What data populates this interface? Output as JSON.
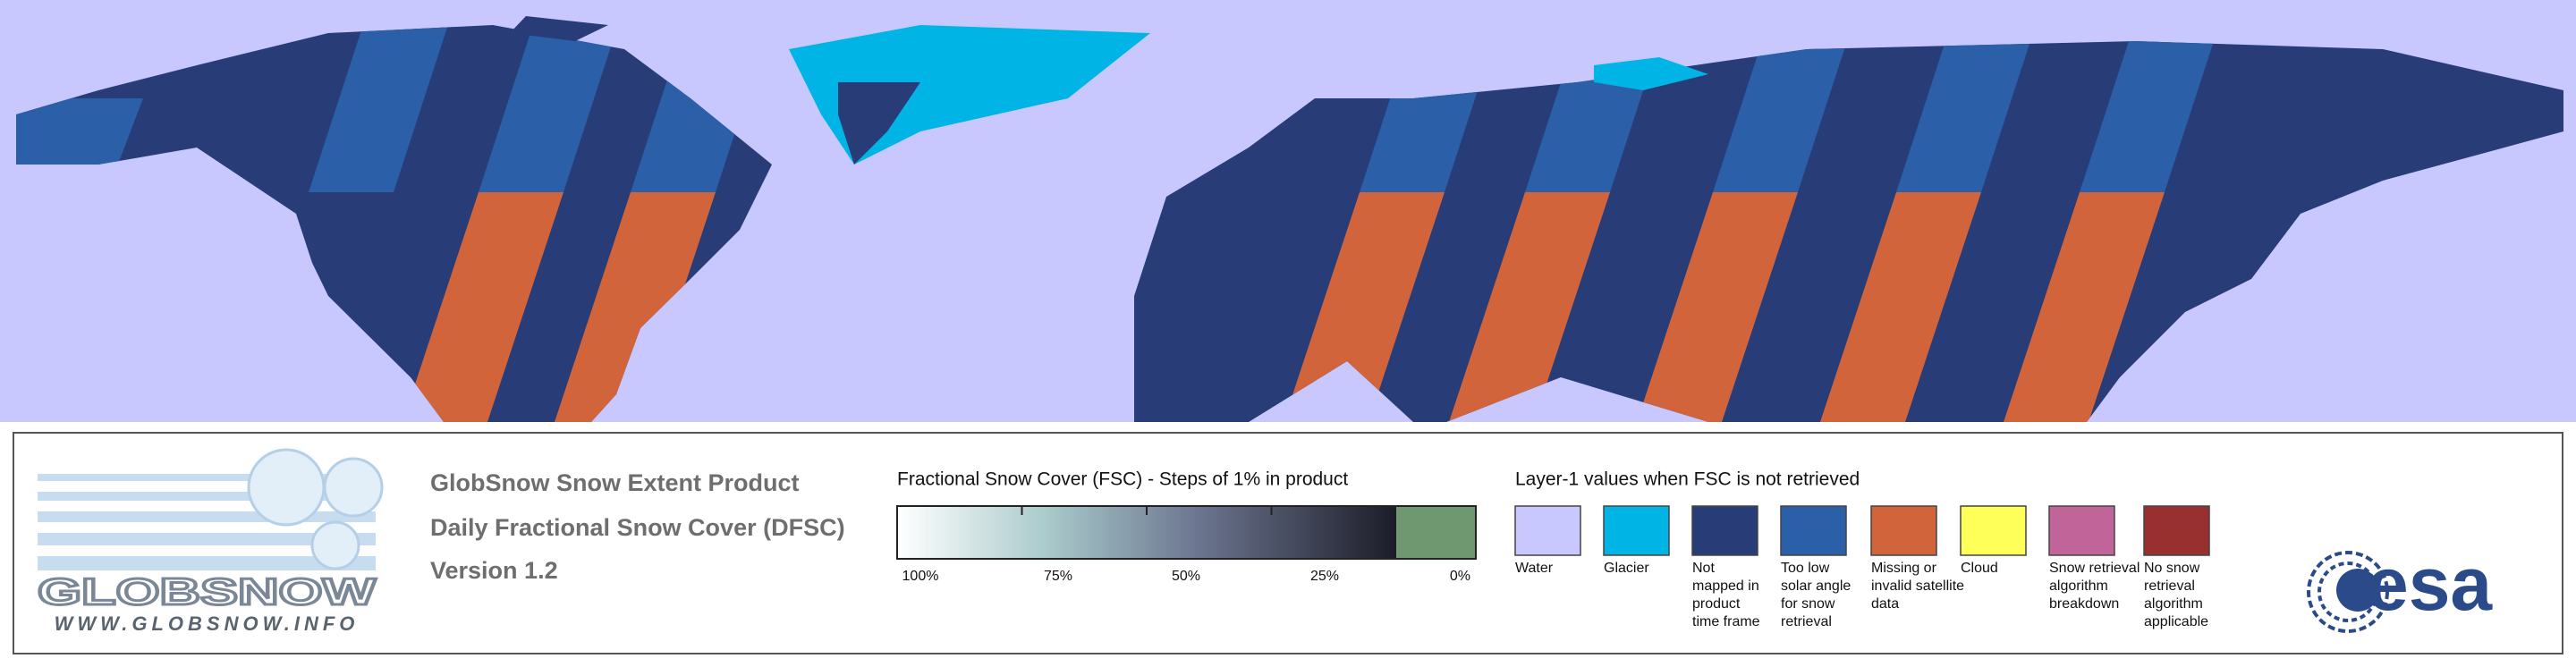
{
  "logo": {
    "name": "GLOBSNOW",
    "url": "WWW.GLOBSNOW.INFO"
  },
  "product": {
    "title": "GlobSnow Snow Extent Product",
    "subtitle": "Daily Fractional Snow Cover (DFSC)",
    "version": "Version 1.2"
  },
  "fsc_scale": {
    "title": "Fractional Snow Cover (FSC) - Steps of 1% in product",
    "labels": [
      "100%",
      "75%",
      "50%",
      "25%",
      "0%"
    ]
  },
  "layer1": {
    "title": "Layer-1 values when FSC is not retrieved",
    "items": [
      {
        "color": "#c8c8ff",
        "lines": [
          "Water"
        ]
      },
      {
        "color": "#00b4e6",
        "lines": [
          "Glacier"
        ]
      },
      {
        "color": "#283c78",
        "lines": [
          "Not",
          "mapped in",
          "product",
          "time frame"
        ]
      },
      {
        "color": "#2b5fa8",
        "lines": [
          "Too low",
          "solar angle",
          "for snow",
          "retrieval"
        ]
      },
      {
        "color": "#d2643c",
        "lines": [
          "Missing or",
          "invalid satellite",
          "data"
        ]
      },
      {
        "color": "#ffff5a",
        "lines": [
          "Cloud"
        ]
      },
      {
        "color": "#c0649a",
        "lines": [
          "Snow retrieval",
          "algorithm",
          "breakdown"
        ]
      },
      {
        "color": "#993030",
        "lines": [
          "No snow",
          "retrieval",
          "algorithm",
          "applicable"
        ]
      }
    ]
  },
  "agency": {
    "name": "esa"
  }
}
